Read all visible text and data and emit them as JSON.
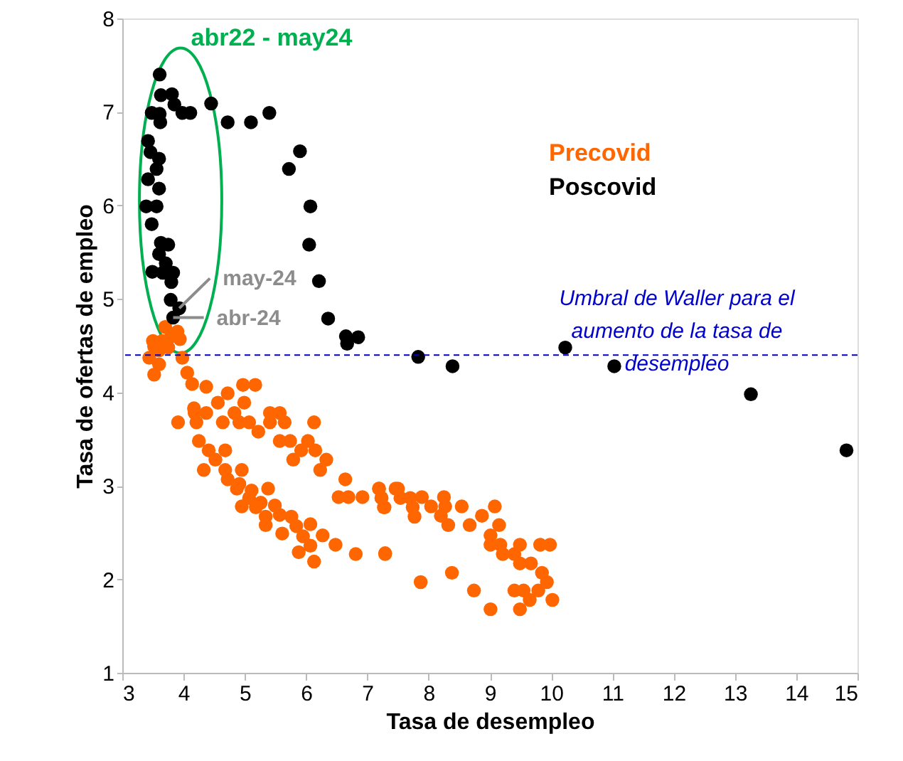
{
  "chart_data": {
    "type": "scatter",
    "xlabel": "Tasa de desempleo",
    "ylabel": "Tasa de ofertas de empleo",
    "xlim": [
      3,
      15
    ],
    "xticks": [
      3,
      4,
      5,
      6,
      7,
      8,
      9,
      10,
      11,
      12,
      13,
      14,
      15
    ],
    "ylim": [
      1,
      8
    ],
    "yticks": [
      1,
      2,
      3,
      4,
      5,
      6,
      7,
      8
    ],
    "grid": false,
    "marker": "circle",
    "legend": "right",
    "series": [
      {
        "name": "Precovid",
        "color": "#ff6600",
        "x": [
          3.52,
          3.94,
          3.44,
          3.52,
          3.98,
          4.06,
          4.14,
          4.37,
          4.97,
          5.17,
          4.72,
          4.56,
          4.99,
          4.83,
          4.18,
          4.37,
          5.41,
          5.57,
          3.91,
          4.21,
          4.64,
          4.91,
          5.07,
          5.41,
          5.65,
          6.13,
          5.22,
          4.25,
          5.57,
          5.74,
          6.03,
          5.92,
          6.15,
          4.41,
          4.68,
          4.52,
          5.79,
          6.33,
          4.33,
          4.68,
          4.95,
          6.23,
          4.72,
          4.91,
          6.64,
          5.11,
          5.38,
          4.87,
          5.07,
          5.26,
          5.49,
          6.53,
          6.69,
          6.92,
          7.19,
          7.46,
          7.23,
          7.27,
          4.95,
          5.18,
          5.34,
          5.57,
          5.76,
          5.34,
          5.61,
          5.84,
          6.07,
          6.27,
          5.95,
          5.88,
          6.07,
          6.13,
          6.48,
          6.81,
          7.29,
          7.19,
          7.23,
          7.28,
          7.5,
          7.54,
          7.7,
          7.74,
          7.89,
          7.77,
          8.04,
          8.25,
          8.27,
          8.2,
          8.32,
          8.54,
          8.67,
          8.87,
          9.08,
          9.15,
          9.01,
          9.01,
          9.17,
          9.49,
          9.21,
          9.4,
          9.49,
          9.67,
          9.82,
          9.98,
          9.85,
          9.93,
          9.4,
          9.55,
          9.79,
          10.02,
          9.65,
          9.49,
          9.01,
          8.74,
          8.38,
          7.87,
          7.29,
          3.7,
          3.8,
          3.65,
          3.6,
          3.9,
          3.5,
          3.75,
          3.6,
          4.17
        ],
        "values": [
          4.49,
          4.57,
          4.37,
          4.19,
          4.37,
          4.21,
          4.09,
          4.06,
          4.08,
          4.08,
          3.99,
          3.89,
          3.89,
          3.78,
          3.78,
          3.78,
          3.78,
          3.78,
          3.68,
          3.68,
          3.68,
          3.68,
          3.68,
          3.68,
          3.68,
          3.68,
          3.58,
          3.48,
          3.48,
          3.48,
          3.48,
          3.38,
          3.38,
          3.38,
          3.38,
          3.28,
          3.28,
          3.28,
          3.17,
          3.17,
          3.17,
          3.17,
          3.07,
          3.02,
          3.07,
          2.95,
          2.97,
          2.97,
          2.87,
          2.82,
          2.79,
          2.88,
          2.88,
          2.88,
          2.97,
          2.97,
          2.87,
          2.77,
          2.78,
          2.77,
          2.67,
          2.69,
          2.67,
          2.58,
          2.49,
          2.57,
          2.59,
          2.47,
          2.46,
          2.29,
          2.36,
          2.19,
          2.37,
          2.27,
          2.27,
          2.97,
          2.87,
          2.77,
          2.97,
          2.87,
          2.87,
          2.77,
          2.88,
          2.67,
          2.78,
          2.88,
          2.78,
          2.68,
          2.58,
          2.78,
          2.58,
          2.68,
          2.78,
          2.58,
          2.47,
          2.37,
          2.37,
          2.37,
          2.27,
          2.27,
          2.17,
          2.17,
          2.37,
          2.37,
          2.07,
          1.97,
          1.88,
          1.88,
          1.88,
          1.78,
          1.78,
          1.68,
          1.68,
          1.88,
          2.07,
          1.97,
          2.28,
          4.7,
          4.6,
          4.55,
          4.45,
          4.65,
          4.55,
          4.48,
          4.3,
          3.83
        ]
      },
      {
        "name": "Poscovid",
        "color": "#000000",
        "x": [
          3.61,
          3.63,
          3.81,
          3.85,
          3.98,
          4.11,
          3.48,
          3.61,
          3.62,
          4.45,
          4.72,
          5.1,
          5.4,
          5.9,
          5.72,
          6.07,
          6.05,
          6.21,
          6.36,
          6.65,
          6.85,
          6.67,
          3.42,
          3.46,
          3.6,
          3.56,
          3.42,
          3.6,
          3.39,
          3.56,
          3.48,
          3.63,
          3.75,
          3.6,
          3.71,
          3.49,
          3.66,
          3.83,
          3.8,
          3.79,
          3.93,
          3.83,
          7.83,
          8.39,
          10.23,
          11.03,
          13.26,
          14.82
        ],
        "values": [
          7.4,
          7.18,
          7.19,
          7.08,
          6.99,
          6.99,
          6.99,
          6.98,
          6.89,
          7.09,
          6.89,
          6.89,
          6.99,
          6.58,
          6.39,
          5.99,
          5.58,
          5.19,
          4.79,
          4.6,
          4.59,
          4.52,
          6.69,
          6.57,
          6.5,
          6.39,
          6.28,
          6.18,
          5.99,
          5.99,
          5.8,
          5.6,
          5.58,
          5.48,
          5.38,
          5.29,
          5.28,
          5.28,
          5.18,
          4.99,
          4.9,
          4.8,
          4.38,
          4.28,
          4.48,
          4.28,
          3.98,
          3.38
        ]
      }
    ],
    "ref_lines": [
      {
        "axis": "y",
        "value": 4.4,
        "label": "Umbral de Waller para el aumento de la tasa de desempleo",
        "color": "#0000cc",
        "line_style": "dashed"
      }
    ],
    "annotations": [
      "abr22 - may24",
      {
        "text": "may-24",
        "x": 3.93,
        "y": 4.9
      },
      {
        "text": "abr-24",
        "x": 3.83,
        "y": 4.8
      }
    ]
  }
}
